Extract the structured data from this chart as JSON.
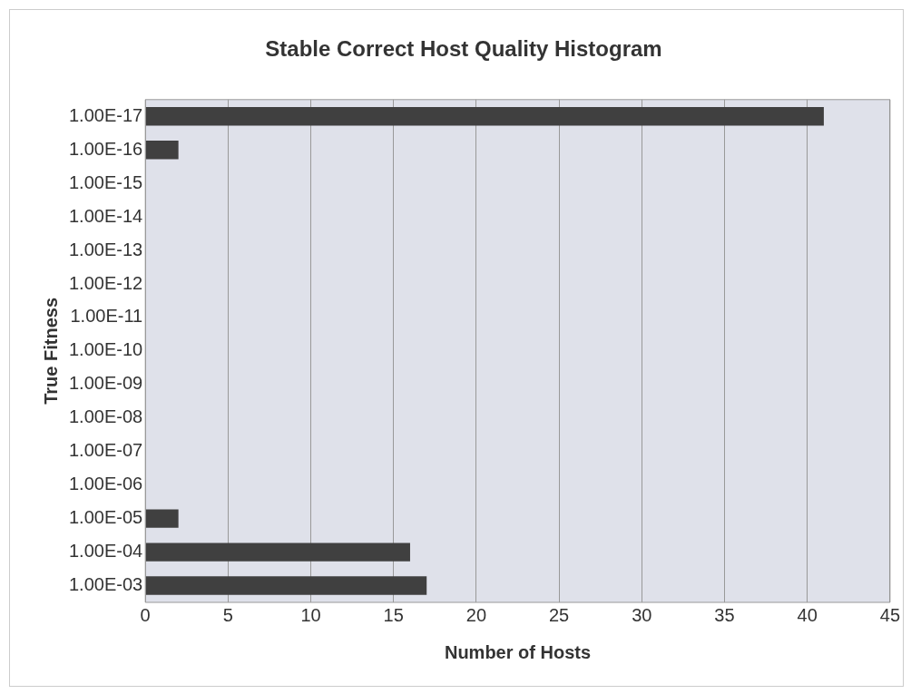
{
  "chart_data": {
    "type": "bar",
    "orientation": "horizontal",
    "title": "Stable Correct Host Quality Histogram",
    "xlabel": "Number of Hosts",
    "ylabel": "True Fitness",
    "categories": [
      "1.00E-17",
      "1.00E-16",
      "1.00E-15",
      "1.00E-14",
      "1.00E-13",
      "1.00E-12",
      "1.00E-11",
      "1.00E-10",
      "1.00E-09",
      "1.00E-08",
      "1.00E-07",
      "1.00E-06",
      "1.00E-05",
      "1.00E-04",
      "1.00E-03"
    ],
    "values": [
      41,
      2,
      0,
      0,
      0,
      0,
      0,
      0,
      0,
      0,
      0,
      0,
      2,
      16,
      17
    ],
    "color": "#404040",
    "xlim": [
      0,
      45
    ],
    "xticks": [
      0,
      5,
      10,
      15,
      20,
      25,
      30,
      35,
      40,
      45
    ],
    "grid": "x",
    "legend": false
  }
}
